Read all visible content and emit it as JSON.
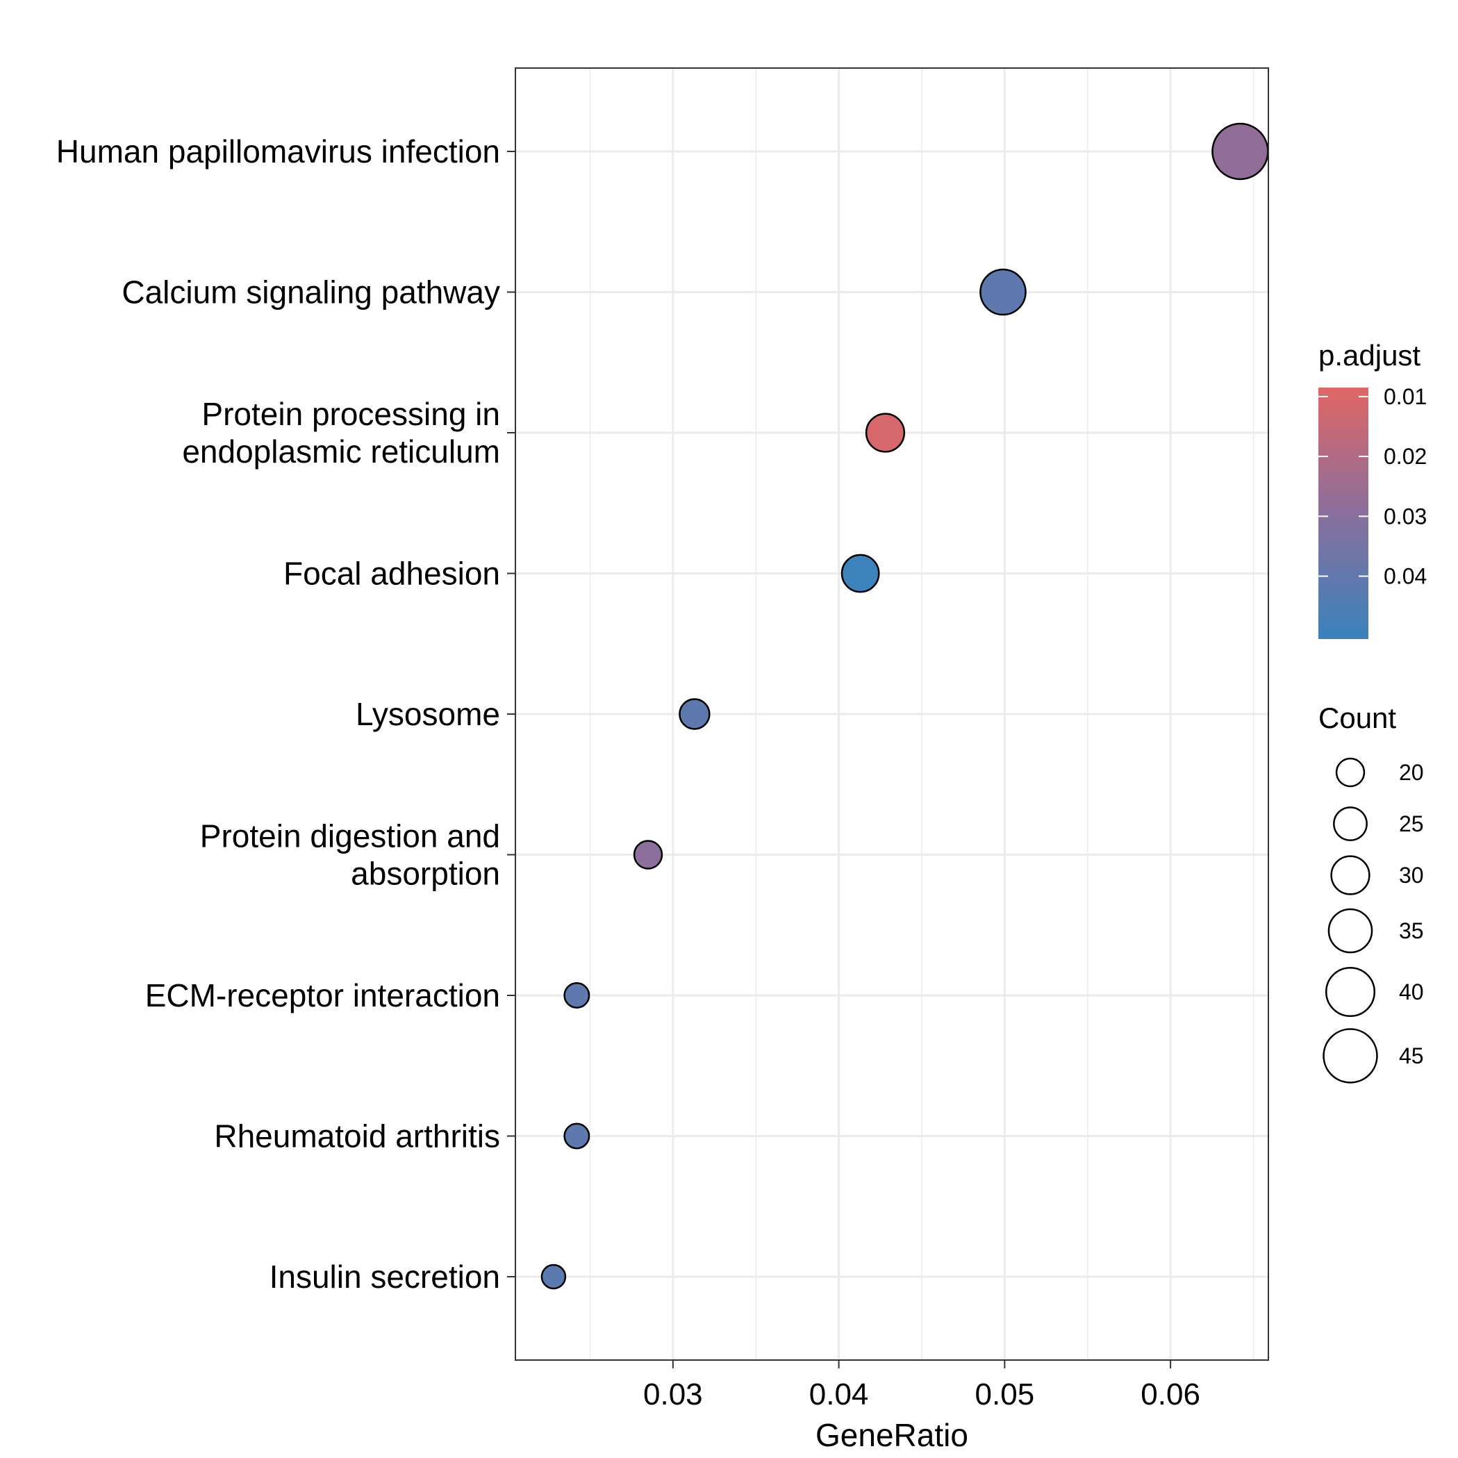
{
  "chart_data": {
    "type": "scatter",
    "xlabel": "GeneRatio",
    "ylabel": "",
    "xlim": [
      0.0205,
      0.0659
    ],
    "xticks": [
      0.03,
      0.04,
      0.05,
      0.06
    ],
    "xtick_labels": [
      "0.03",
      "0.04",
      "0.05",
      "0.06"
    ],
    "grid": true,
    "categories": [
      {
        "label": [
          "Human papillomavirus infection"
        ],
        "x": 0.0642,
        "count": 47,
        "p_adjust": 0.028
      },
      {
        "label": [
          "Calcium signaling pathway"
        ],
        "x": 0.0499,
        "count": 37,
        "p_adjust": 0.041
      },
      {
        "label": [
          "Protein processing in",
          "endoplasmic reticulum"
        ],
        "x": 0.0428,
        "count": 30,
        "p_adjust": 0.011
      },
      {
        "label": [
          "Focal adhesion"
        ],
        "x": 0.0413,
        "count": 29,
        "p_adjust": 0.05
      },
      {
        "label": [
          "Lysosome"
        ],
        "x": 0.0313,
        "count": 22,
        "p_adjust": 0.041
      },
      {
        "label": [
          "Protein digestion and",
          "absorption"
        ],
        "x": 0.0285,
        "count": 20,
        "p_adjust": 0.029
      },
      {
        "label": [
          "ECM-receptor interaction"
        ],
        "x": 0.0242,
        "count": 17,
        "p_adjust": 0.041
      },
      {
        "label": [
          "Rheumatoid arthritis"
        ],
        "x": 0.0242,
        "count": 17,
        "p_adjust": 0.041
      },
      {
        "label": [
          "Insulin secretion"
        ],
        "x": 0.0228,
        "count": 16,
        "p_adjust": 0.042
      }
    ],
    "color_legend": {
      "title": "p.adjust",
      "range": [
        0.0085,
        0.0505
      ],
      "ticks": [
        0.01,
        0.02,
        0.03,
        0.04
      ],
      "tick_labels": [
        "0.01",
        "0.02",
        "0.03",
        "0.04"
      ],
      "low_color": "#E06666",
      "high_color": "#3A82BD",
      "mid_color": "#8A6F9C"
    },
    "size_legend": {
      "title": "Count",
      "values": [
        20,
        25,
        30,
        35,
        40,
        45
      ],
      "labels": [
        "20",
        "25",
        "30",
        "35",
        "40",
        "45"
      ]
    },
    "legend_position": "right"
  }
}
